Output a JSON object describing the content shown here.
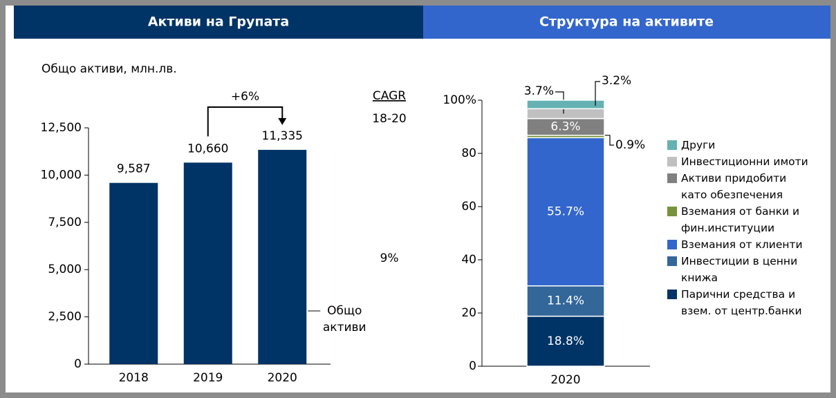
{
  "chart_data": [
    {
      "type": "bar",
      "title": "Активи на Групата",
      "subtitle": "Общо активи, млн.лв.",
      "categories": [
        "2018",
        "2019",
        "2020"
      ],
      "series": [
        {
          "name": "Общо активи",
          "color": "#003366",
          "values": [
            9587,
            10660,
            11335
          ],
          "value_labels": [
            "9,587",
            "10,660",
            "11,335"
          ]
        }
      ],
      "ylim": [
        0,
        12500
      ],
      "yticks": [
        0,
        {
          "value": 2500,
          "label": "2,500"
        },
        {
          "value": 5000,
          "label": "5,000"
        },
        {
          "value": 7500,
          "label": "7,500"
        },
        {
          "value": 10000,
          "label": "10,000"
        },
        {
          "value": 12500,
          "label": "12,500"
        }
      ],
      "annotation": "+6%",
      "cagr": {
        "label": "CAGR",
        "period": "18-20",
        "value": "9%"
      }
    },
    {
      "type": "stacked_bar",
      "title": "Структура на активите",
      "categories": [
        "2020"
      ],
      "series": [
        {
          "name": "Парични средства и взем. от центр.банки",
          "color": "#003366",
          "values": [
            18.8
          ],
          "value_labels": [
            "18.8%"
          ]
        },
        {
          "name": "Инвестиции в ценни книжа",
          "color": "#336699",
          "values": [
            11.4
          ],
          "value_labels": [
            "11.4%"
          ]
        },
        {
          "name": "Вземания от клиенти",
          "color": "#3366cc",
          "values": [
            55.7
          ],
          "value_labels": [
            "55.7%"
          ]
        },
        {
          "name": "Вземания от банки и фин.институции",
          "color": "#77933c",
          "values": [
            0.9
          ],
          "value_labels": [
            "0.9%"
          ]
        },
        {
          "name": "Активи придобити като обезпечения",
          "color": "#808080",
          "values": [
            6.3
          ],
          "value_labels": [
            "6.3%"
          ]
        },
        {
          "name": "Инвестиционни имоти",
          "color": "#c0c0c0",
          "values": [
            3.7
          ],
          "value_labels": [
            "3.7%"
          ]
        },
        {
          "name": "Други",
          "color": "#66b2b2",
          "values": [
            3.2
          ],
          "value_labels": [
            "3.2%"
          ]
        }
      ],
      "ylim": [
        0,
        100
      ],
      "yticks": [
        0,
        20,
        40,
        60,
        80,
        {
          "value": 100,
          "label": "100%"
        }
      ]
    }
  ]
}
